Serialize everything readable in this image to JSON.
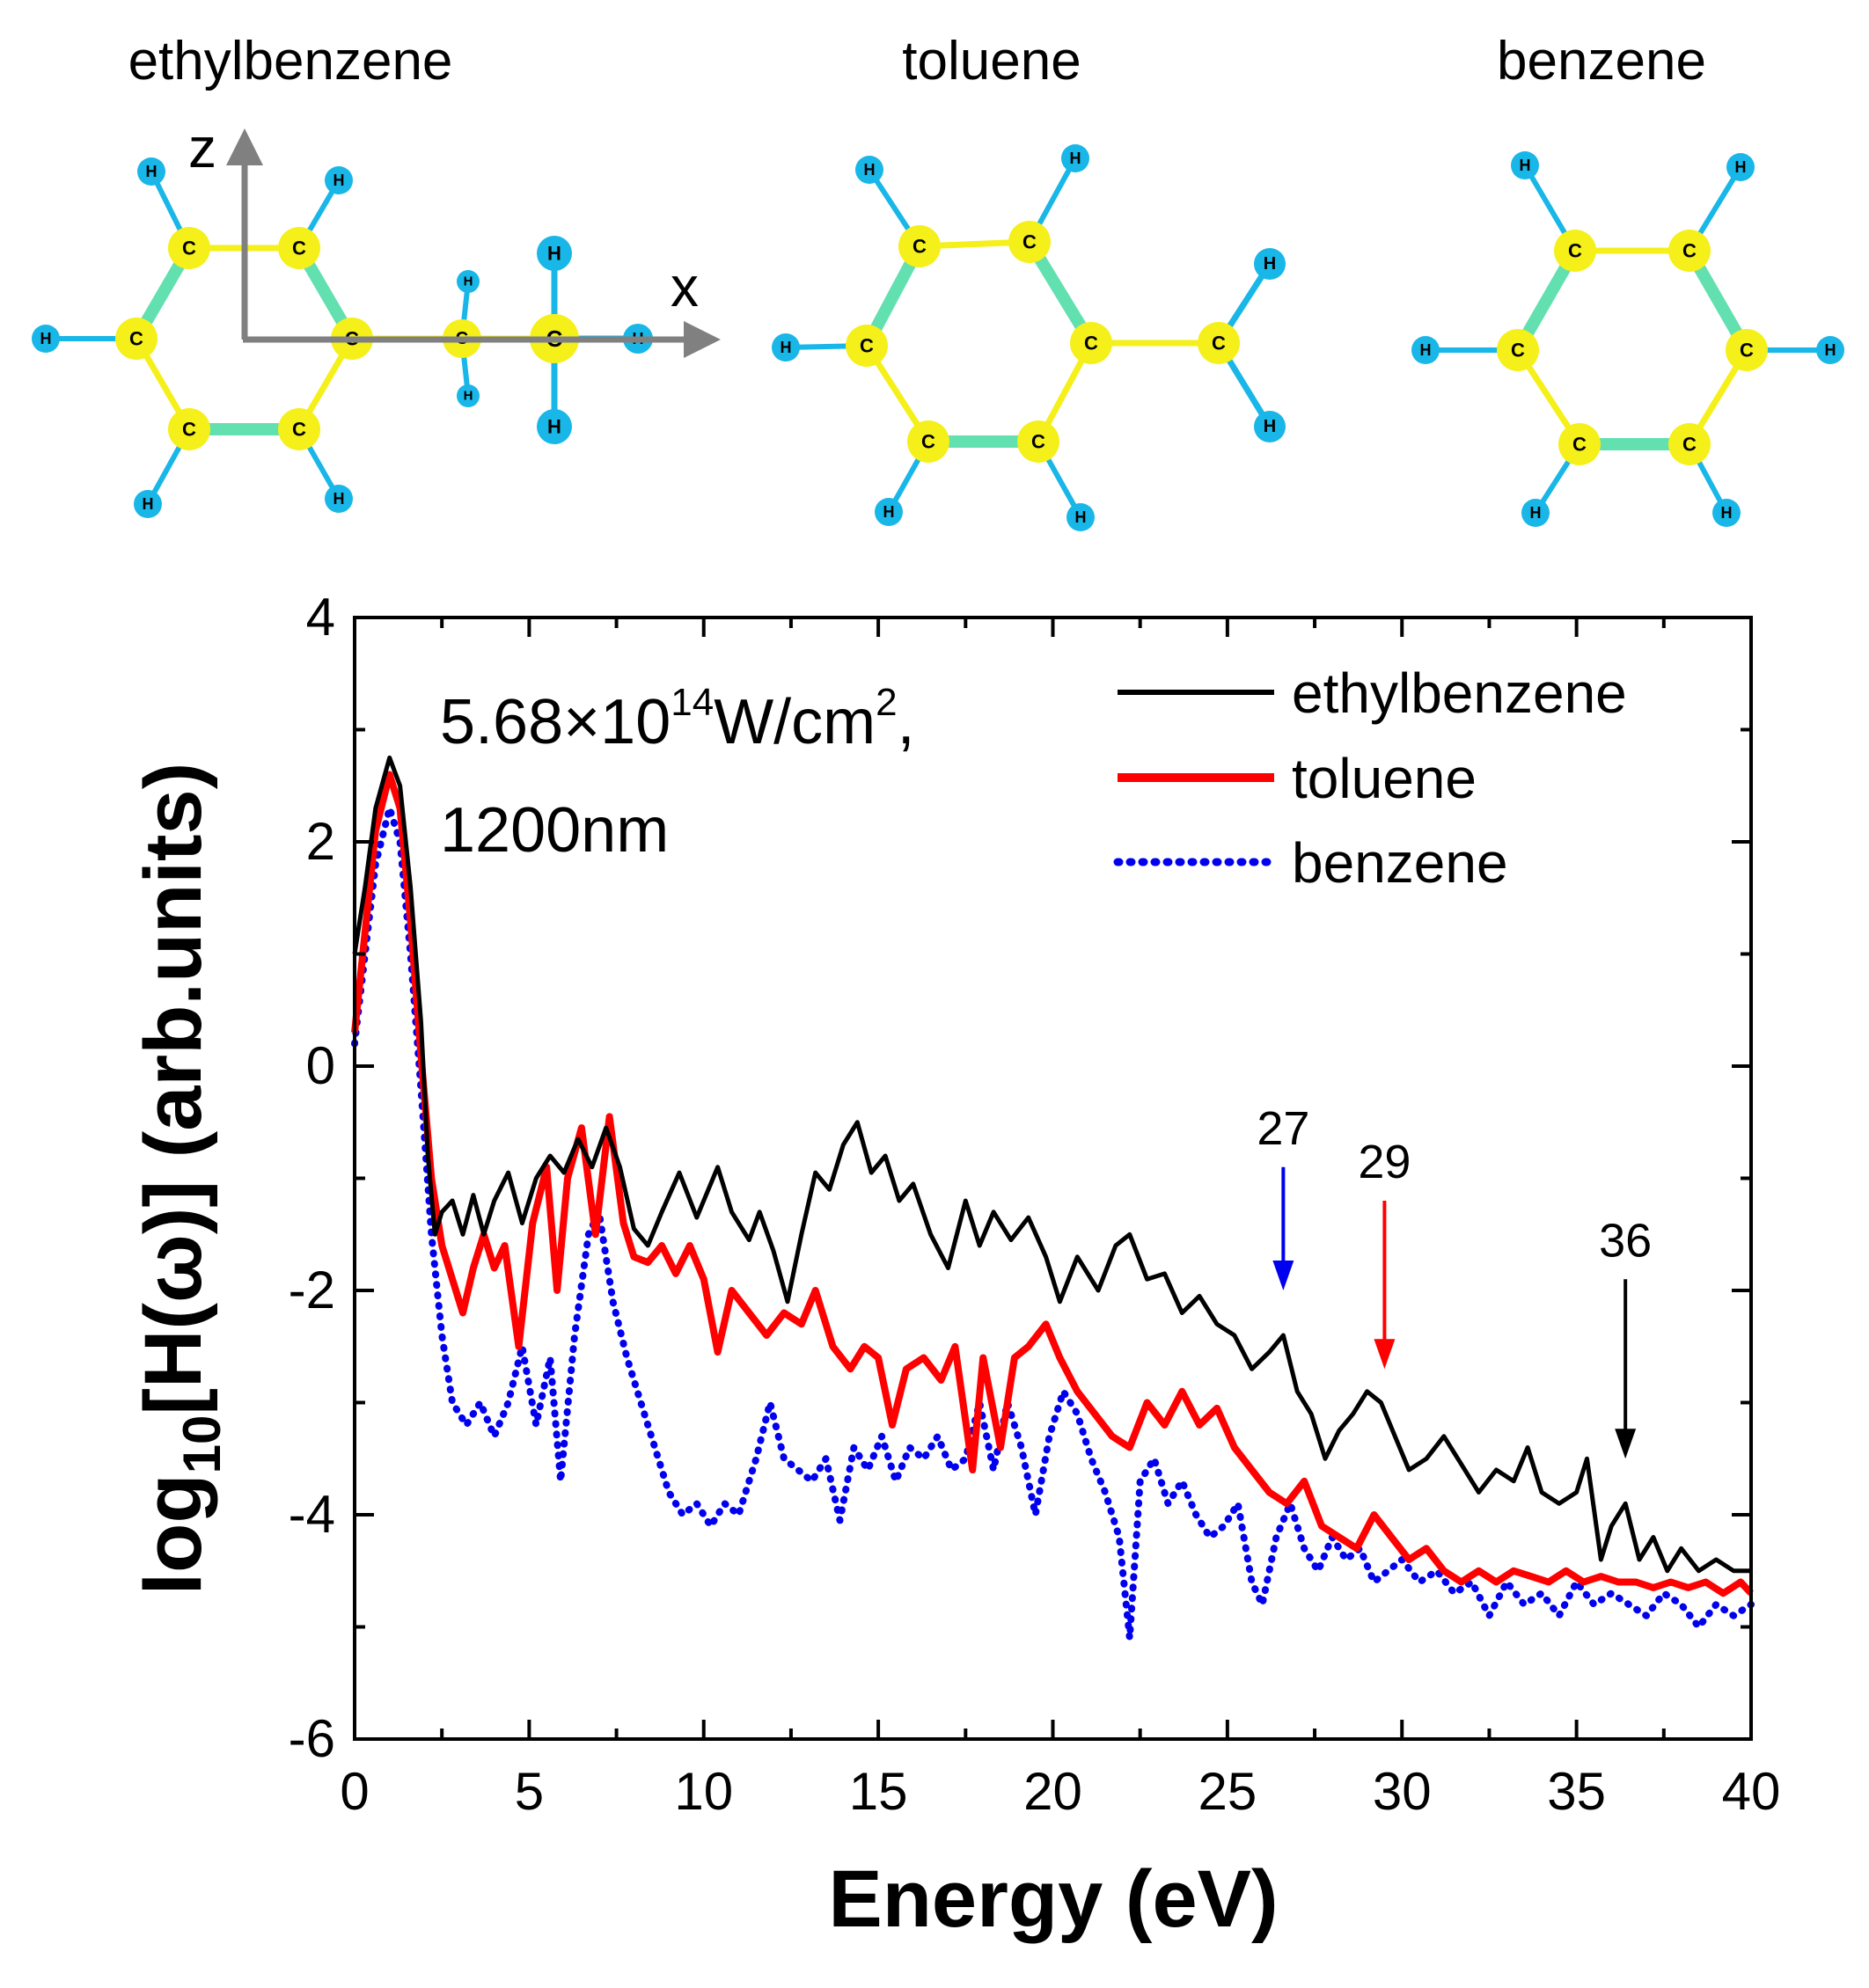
{
  "molecules": [
    {
      "name": "ethylbenzene",
      "atom_carbon": "C",
      "atom_hydrogen": "H"
    },
    {
      "name": "toluene",
      "atom_carbon": "C",
      "atom_hydrogen": "H"
    },
    {
      "name": "benzene",
      "atom_carbon": "C",
      "atom_hydrogen": "H"
    }
  ],
  "coordinate_axes": {
    "z_label": "z",
    "x_label": "x"
  },
  "colors": {
    "carbon": "#f5ef1a",
    "hydrogen": "#19b6e8",
    "bond_single": "#f5ef1a",
    "bond_double": "#62e0b0",
    "axis_arrow": "#808080",
    "ethylbenzene": "#000000",
    "toluene": "#ff0000",
    "benzene": "#0000ee"
  },
  "chart_data": {
    "type": "line",
    "title": "",
    "xlabel": "Energy (eV)",
    "ylabel": "log10[H(ω)] (arb.units)",
    "ylabel_parts": {
      "pre": "log",
      "sub": "10",
      "post": "[H(ω)] (arb.units)"
    },
    "xlim": [
      0,
      40
    ],
    "ylim": [
      -6,
      4
    ],
    "xticks": [
      0,
      5,
      10,
      15,
      20,
      25,
      30,
      35,
      40
    ],
    "yticks": [
      -6,
      -4,
      -2,
      0,
      2,
      4
    ],
    "grid": false,
    "annotation": {
      "line1_mantissa": "5.68×10",
      "line1_exp": "14",
      "line1_unit": "W/cm",
      "line1_unit_exp": "2",
      "line1_tail": ",",
      "line2": "1200nm"
    },
    "legend_position": "top-right",
    "series": [
      {
        "name": "ethylbenzene",
        "style": "solid",
        "points": [
          [
            0,
            1.0
          ],
          [
            0.3,
            1.6
          ],
          [
            0.6,
            2.3
          ],
          [
            1.0,
            2.75
          ],
          [
            1.3,
            2.5
          ],
          [
            1.6,
            1.6
          ],
          [
            1.9,
            0.4
          ],
          [
            2.1,
            -0.8
          ],
          [
            2.3,
            -1.5
          ],
          [
            2.5,
            -1.3
          ],
          [
            2.8,
            -1.2
          ],
          [
            3.1,
            -1.5
          ],
          [
            3.4,
            -1.15
          ],
          [
            3.7,
            -1.5
          ],
          [
            4.0,
            -1.2
          ],
          [
            4.4,
            -0.95
          ],
          [
            4.8,
            -1.4
          ],
          [
            5.2,
            -1.0
          ],
          [
            5.6,
            -0.8
          ],
          [
            6.0,
            -0.95
          ],
          [
            6.4,
            -0.65
          ],
          [
            6.8,
            -0.9
          ],
          [
            7.2,
            -0.55
          ],
          [
            7.6,
            -0.9
          ],
          [
            8.0,
            -1.45
          ],
          [
            8.4,
            -1.6
          ],
          [
            8.8,
            -1.3
          ],
          [
            9.3,
            -0.95
          ],
          [
            9.8,
            -1.35
          ],
          [
            10.4,
            -0.9
          ],
          [
            10.8,
            -1.3
          ],
          [
            11.3,
            -1.55
          ],
          [
            11.6,
            -1.3
          ],
          [
            12.0,
            -1.65
          ],
          [
            12.4,
            -2.1
          ],
          [
            12.8,
            -1.5
          ],
          [
            13.2,
            -0.95
          ],
          [
            13.6,
            -1.1
          ],
          [
            14.0,
            -0.7
          ],
          [
            14.4,
            -0.5
          ],
          [
            14.8,
            -0.95
          ],
          [
            15.2,
            -0.8
          ],
          [
            15.6,
            -1.2
          ],
          [
            16.0,
            -1.05
          ],
          [
            16.5,
            -1.5
          ],
          [
            17.0,
            -1.8
          ],
          [
            17.5,
            -1.2
          ],
          [
            17.9,
            -1.6
          ],
          [
            18.3,
            -1.3
          ],
          [
            18.8,
            -1.55
          ],
          [
            19.3,
            -1.35
          ],
          [
            19.8,
            -1.7
          ],
          [
            20.2,
            -2.1
          ],
          [
            20.7,
            -1.7
          ],
          [
            21.3,
            -2.0
          ],
          [
            21.8,
            -1.6
          ],
          [
            22.2,
            -1.5
          ],
          [
            22.7,
            -1.9
          ],
          [
            23.2,
            -1.85
          ],
          [
            23.7,
            -2.2
          ],
          [
            24.2,
            -2.05
          ],
          [
            24.7,
            -2.3
          ],
          [
            25.2,
            -2.4
          ],
          [
            25.7,
            -2.7
          ],
          [
            26.2,
            -2.55
          ],
          [
            26.6,
            -2.4
          ],
          [
            27.0,
            -2.9
          ],
          [
            27.4,
            -3.1
          ],
          [
            27.8,
            -3.5
          ],
          [
            28.2,
            -3.25
          ],
          [
            28.6,
            -3.1
          ],
          [
            29.0,
            -2.9
          ],
          [
            29.4,
            -3.0
          ],
          [
            29.8,
            -3.3
          ],
          [
            30.2,
            -3.6
          ],
          [
            30.7,
            -3.5
          ],
          [
            31.2,
            -3.3
          ],
          [
            31.7,
            -3.55
          ],
          [
            32.2,
            -3.8
          ],
          [
            32.7,
            -3.6
          ],
          [
            33.2,
            -3.7
          ],
          [
            33.6,
            -3.4
          ],
          [
            34.0,
            -3.8
          ],
          [
            34.5,
            -3.9
          ],
          [
            35.0,
            -3.8
          ],
          [
            35.3,
            -3.5
          ],
          [
            35.7,
            -4.4
          ],
          [
            36.0,
            -4.1
          ],
          [
            36.4,
            -3.9
          ],
          [
            36.8,
            -4.4
          ],
          [
            37.2,
            -4.2
          ],
          [
            37.6,
            -4.5
          ],
          [
            38.0,
            -4.3
          ],
          [
            38.5,
            -4.5
          ],
          [
            39.0,
            -4.4
          ],
          [
            39.5,
            -4.5
          ],
          [
            40.0,
            -4.5
          ]
        ]
      },
      {
        "name": "toluene",
        "style": "solid",
        "points": [
          [
            0,
            0.3
          ],
          [
            0.3,
            1.2
          ],
          [
            0.6,
            2.1
          ],
          [
            1.0,
            2.6
          ],
          [
            1.3,
            2.3
          ],
          [
            1.6,
            1.3
          ],
          [
            1.9,
            0.1
          ],
          [
            2.2,
            -1.0
          ],
          [
            2.5,
            -1.6
          ],
          [
            2.8,
            -1.9
          ],
          [
            3.1,
            -2.2
          ],
          [
            3.4,
            -1.8
          ],
          [
            3.7,
            -1.5
          ],
          [
            4.0,
            -1.8
          ],
          [
            4.3,
            -1.6
          ],
          [
            4.7,
            -2.5
          ],
          [
            5.1,
            -1.4
          ],
          [
            5.5,
            -0.9
          ],
          [
            5.8,
            -2.0
          ],
          [
            6.1,
            -1.0
          ],
          [
            6.5,
            -0.55
          ],
          [
            6.9,
            -1.5
          ],
          [
            7.3,
            -0.45
          ],
          [
            7.7,
            -1.4
          ],
          [
            8.0,
            -1.7
          ],
          [
            8.4,
            -1.75
          ],
          [
            8.8,
            -1.6
          ],
          [
            9.2,
            -1.85
          ],
          [
            9.6,
            -1.6
          ],
          [
            10.0,
            -1.9
          ],
          [
            10.4,
            -2.55
          ],
          [
            10.8,
            -2.0
          ],
          [
            11.3,
            -2.2
          ],
          [
            11.8,
            -2.4
          ],
          [
            12.3,
            -2.2
          ],
          [
            12.8,
            -2.3
          ],
          [
            13.2,
            -2.0
          ],
          [
            13.7,
            -2.5
          ],
          [
            14.2,
            -2.7
          ],
          [
            14.6,
            -2.5
          ],
          [
            15.0,
            -2.6
          ],
          [
            15.4,
            -3.2
          ],
          [
            15.8,
            -2.7
          ],
          [
            16.3,
            -2.6
          ],
          [
            16.8,
            -2.8
          ],
          [
            17.2,
            -2.5
          ],
          [
            17.7,
            -3.6
          ],
          [
            18.0,
            -2.6
          ],
          [
            18.5,
            -3.4
          ],
          [
            18.9,
            -2.6
          ],
          [
            19.3,
            -2.5
          ],
          [
            19.8,
            -2.3
          ],
          [
            20.2,
            -2.6
          ],
          [
            20.7,
            -2.9
          ],
          [
            21.2,
            -3.1
          ],
          [
            21.7,
            -3.3
          ],
          [
            22.2,
            -3.4
          ],
          [
            22.7,
            -3.0
          ],
          [
            23.2,
            -3.2
          ],
          [
            23.7,
            -2.9
          ],
          [
            24.2,
            -3.2
          ],
          [
            24.7,
            -3.05
          ],
          [
            25.2,
            -3.4
          ],
          [
            25.7,
            -3.6
          ],
          [
            26.2,
            -3.8
          ],
          [
            26.7,
            -3.9
          ],
          [
            27.2,
            -3.7
          ],
          [
            27.7,
            -4.1
          ],
          [
            28.2,
            -4.2
          ],
          [
            28.7,
            -4.3
          ],
          [
            29.2,
            -4.0
          ],
          [
            29.7,
            -4.2
          ],
          [
            30.2,
            -4.4
          ],
          [
            30.7,
            -4.3
          ],
          [
            31.2,
            -4.5
          ],
          [
            31.7,
            -4.6
          ],
          [
            32.2,
            -4.5
          ],
          [
            32.7,
            -4.6
          ],
          [
            33.2,
            -4.5
          ],
          [
            33.7,
            -4.55
          ],
          [
            34.2,
            -4.6
          ],
          [
            34.7,
            -4.5
          ],
          [
            35.2,
            -4.6
          ],
          [
            35.7,
            -4.55
          ],
          [
            36.2,
            -4.6
          ],
          [
            36.7,
            -4.6
          ],
          [
            37.2,
            -4.65
          ],
          [
            37.7,
            -4.6
          ],
          [
            38.2,
            -4.65
          ],
          [
            38.7,
            -4.6
          ],
          [
            39.2,
            -4.7
          ],
          [
            39.7,
            -4.6
          ],
          [
            40.0,
            -4.7
          ]
        ]
      },
      {
        "name": "benzene",
        "style": "dotted",
        "points": [
          [
            0,
            0.2
          ],
          [
            0.3,
            1.0
          ],
          [
            0.6,
            1.8
          ],
          [
            1.0,
            2.3
          ],
          [
            1.3,
            2.0
          ],
          [
            1.6,
            1.0
          ],
          [
            1.9,
            -0.2
          ],
          [
            2.2,
            -1.5
          ],
          [
            2.5,
            -2.4
          ],
          [
            2.8,
            -3.0
          ],
          [
            3.2,
            -3.2
          ],
          [
            3.6,
            -3.0
          ],
          [
            4.0,
            -3.3
          ],
          [
            4.4,
            -3.0
          ],
          [
            4.8,
            -2.5
          ],
          [
            5.2,
            -3.2
          ],
          [
            5.6,
            -2.6
          ],
          [
            5.9,
            -3.7
          ],
          [
            6.3,
            -2.4
          ],
          [
            6.7,
            -1.5
          ],
          [
            7.0,
            -1.3
          ],
          [
            7.4,
            -2.1
          ],
          [
            7.8,
            -2.6
          ],
          [
            8.2,
            -3.0
          ],
          [
            8.6,
            -3.4
          ],
          [
            9.0,
            -3.8
          ],
          [
            9.4,
            -4.0
          ],
          [
            9.8,
            -3.9
          ],
          [
            10.2,
            -4.1
          ],
          [
            10.6,
            -3.9
          ],
          [
            11.0,
            -4.0
          ],
          [
            11.5,
            -3.5
          ],
          [
            11.9,
            -3.0
          ],
          [
            12.3,
            -3.5
          ],
          [
            12.7,
            -3.6
          ],
          [
            13.1,
            -3.7
          ],
          [
            13.5,
            -3.5
          ],
          [
            13.9,
            -4.05
          ],
          [
            14.3,
            -3.4
          ],
          [
            14.7,
            -3.6
          ],
          [
            15.1,
            -3.3
          ],
          [
            15.5,
            -3.7
          ],
          [
            15.9,
            -3.4
          ],
          [
            16.3,
            -3.5
          ],
          [
            16.7,
            -3.3
          ],
          [
            17.1,
            -3.6
          ],
          [
            17.5,
            -3.5
          ],
          [
            17.9,
            -3.0
          ],
          [
            18.3,
            -3.6
          ],
          [
            18.7,
            -3.0
          ],
          [
            19.1,
            -3.4
          ],
          [
            19.5,
            -4.0
          ],
          [
            19.9,
            -3.3
          ],
          [
            20.3,
            -2.9
          ],
          [
            20.7,
            -3.1
          ],
          [
            21.1,
            -3.5
          ],
          [
            21.5,
            -3.8
          ],
          [
            21.9,
            -4.2
          ],
          [
            22.2,
            -5.1
          ],
          [
            22.5,
            -3.7
          ],
          [
            22.9,
            -3.5
          ],
          [
            23.3,
            -3.9
          ],
          [
            23.7,
            -3.7
          ],
          [
            24.1,
            -4.0
          ],
          [
            24.5,
            -4.2
          ],
          [
            24.9,
            -4.1
          ],
          [
            25.3,
            -3.9
          ],
          [
            25.7,
            -4.6
          ],
          [
            26.0,
            -4.8
          ],
          [
            26.4,
            -4.2
          ],
          [
            26.8,
            -3.9
          ],
          [
            27.2,
            -4.3
          ],
          [
            27.6,
            -4.5
          ],
          [
            28.0,
            -4.2
          ],
          [
            28.4,
            -4.4
          ],
          [
            28.8,
            -4.3
          ],
          [
            29.2,
            -4.6
          ],
          [
            29.6,
            -4.5
          ],
          [
            30.0,
            -4.4
          ],
          [
            30.5,
            -4.6
          ],
          [
            31.0,
            -4.5
          ],
          [
            31.5,
            -4.7
          ],
          [
            32.0,
            -4.6
          ],
          [
            32.5,
            -4.9
          ],
          [
            33.0,
            -4.6
          ],
          [
            33.5,
            -4.8
          ],
          [
            34.0,
            -4.7
          ],
          [
            34.5,
            -4.9
          ],
          [
            35.0,
            -4.6
          ],
          [
            35.5,
            -4.8
          ],
          [
            36.0,
            -4.7
          ],
          [
            36.5,
            -4.8
          ],
          [
            37.0,
            -4.9
          ],
          [
            37.5,
            -4.7
          ],
          [
            38.0,
            -4.8
          ],
          [
            38.5,
            -5.0
          ],
          [
            39.0,
            -4.8
          ],
          [
            39.5,
            -4.9
          ],
          [
            40.0,
            -4.8
          ]
        ]
      }
    ],
    "markers": [
      {
        "label": "27",
        "x": 26.6,
        "y_from": -0.9,
        "y_to": -2.0,
        "color": "#0000ee"
      },
      {
        "label": "29",
        "x": 29.5,
        "y_from": -1.2,
        "y_to": -2.7,
        "color": "#ff0000"
      },
      {
        "label": "36",
        "x": 36.4,
        "y_from": -1.9,
        "y_to": -3.5,
        "color": "#000000"
      }
    ]
  }
}
